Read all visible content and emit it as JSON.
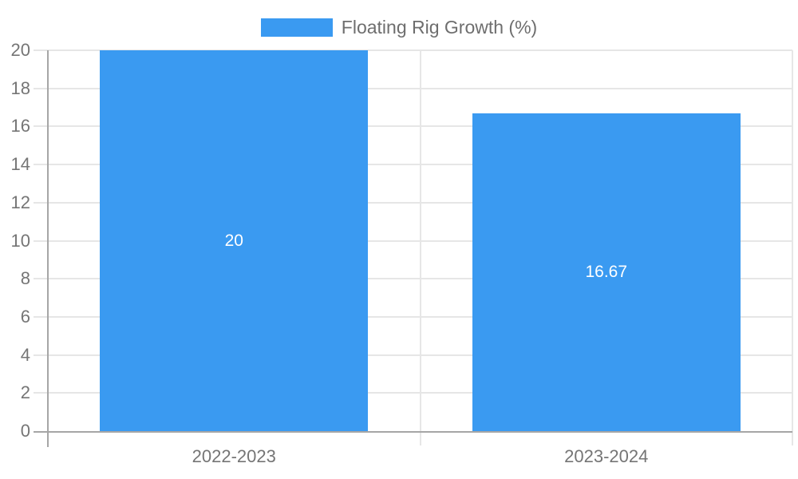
{
  "colors": {
    "bar": "#3a9af1",
    "grid": "#e6e6e6",
    "axis": "#a6a6a6",
    "tick-label": "#757575",
    "legend-text": "#6e6e6e",
    "bar-label": "#ffffff",
    "background": "#ffffff"
  },
  "chart_data": {
    "type": "bar",
    "title": "",
    "xlabel": "",
    "ylabel": "",
    "legend": {
      "label": "Floating Rig Growth (%)",
      "position": "top",
      "swatch_color": "#3a9af1"
    },
    "categories": [
      "2022-2023",
      "2023-2024"
    ],
    "series": [
      {
        "name": "Floating Rig Growth (%)",
        "values": [
          20,
          16.67
        ],
        "value_labels": [
          "20",
          "16.67"
        ],
        "color": "#3a9af1"
      }
    ],
    "ylim": [
      0,
      20
    ],
    "ytick_step": 2,
    "yticks": [
      0,
      2,
      4,
      6,
      8,
      10,
      12,
      14,
      16,
      18,
      20
    ],
    "grid": true,
    "bar_label_position": "center"
  }
}
